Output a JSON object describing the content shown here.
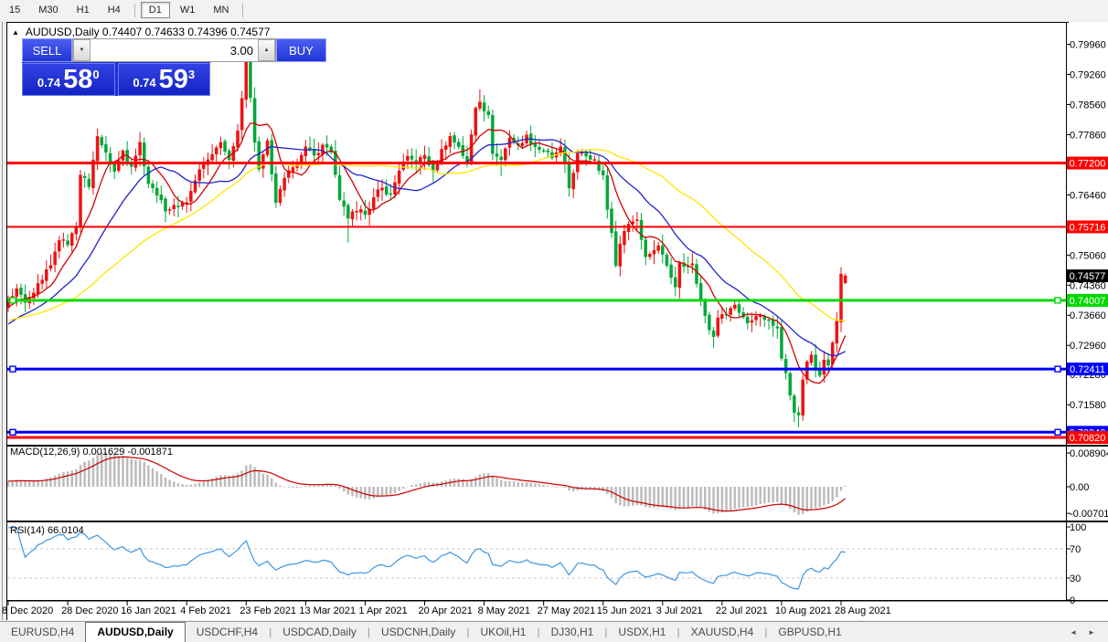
{
  "toolbar": {
    "items": [
      "15",
      "M30",
      "H1",
      "H4",
      "|",
      "D1",
      "W1",
      "MN",
      "|"
    ],
    "active": "D1"
  },
  "chart": {
    "marker": "▲",
    "title": "AUDUSD,Daily  0.74407 0.74633 0.74396 0.74577"
  },
  "trade_panel": {
    "sell_label": "SELL",
    "buy_label": "BUY",
    "volume": "3.00",
    "down_glyph": "▼",
    "up_glyph": "▲",
    "sell_small": "0.74",
    "sell_big": "58",
    "sell_sup": "0",
    "buy_small": "0.74",
    "buy_big": "59",
    "buy_sup": "3"
  },
  "macd": {
    "label": "MACD(12,26,9) 0.001629 -0.001871"
  },
  "rsi": {
    "label": "RSI(14) 66.0104"
  },
  "tabs": {
    "items": [
      {
        "label": "EURUSD,H4",
        "active": false
      },
      {
        "label": "AUDUSD,Daily",
        "active": true
      },
      {
        "label": "USDCHF,H4",
        "active": false
      },
      {
        "label": "USDCAD,Daily",
        "active": false
      },
      {
        "label": "USDCNH,Daily",
        "active": false
      },
      {
        "label": "UKOil,H1",
        "active": false
      },
      {
        "label": "DJ30,H1",
        "active": false
      },
      {
        "label": "USDX,H1",
        "active": false
      },
      {
        "label": "XAUUSD,H4",
        "active": false
      },
      {
        "label": "GBPUSD,H1",
        "active": false
      }
    ],
    "scroll_left": "◄",
    "scroll_right": "►"
  },
  "chart_data": {
    "type": "candlestick",
    "symbol": "AUDUSD",
    "timeframe": "Daily",
    "ohlc_current": {
      "open": 0.74407,
      "high": 0.74633,
      "low": 0.74396,
      "close": 0.74577
    },
    "bars": 198,
    "up_color": "#ee1111",
    "down_color": "#00a838",
    "price_axis_ticks": [
      0.7996,
      0.7926,
      0.7856,
      0.7786,
      0.7646,
      0.7506,
      0.7436,
      0.7366,
      0.7296,
      0.7228,
      0.7158
    ],
    "price_range": {
      "top": 0.8046,
      "bottom": 0.7065
    },
    "current_price": {
      "value": 0.74577,
      "label": "0.74577",
      "bg": "#000000",
      "fg": "#ffffff"
    },
    "hlines": [
      {
        "value": 0.772,
        "label": "0.77200",
        "color": "#ff0000",
        "width": 3,
        "anchors": false,
        "text": "#ffffff"
      },
      {
        "value": 0.75716,
        "label": "0.75716",
        "color": "#ff0000",
        "width": 2,
        "anchors": false,
        "text": "#ffffff"
      },
      {
        "value": 0.74007,
        "label": "0.74007",
        "color": "#00d900",
        "width": 3,
        "anchors": true,
        "text": "#ffffff"
      },
      {
        "value": 0.72411,
        "label": "0.72411",
        "color": "#0000ff",
        "width": 3,
        "anchors": true,
        "text": "#ffffff"
      },
      {
        "value": 0.7094,
        "label": "0.70940",
        "color": "#0000ff",
        "width": 3,
        "anchors": true,
        "text": "#ffffff"
      },
      {
        "value": 0.7082,
        "label": "0.70820",
        "color": "#ff0000",
        "width": 3,
        "anchors": false,
        "text": "#ffffff"
      }
    ],
    "moving_averages": [
      {
        "name": "ma-fast",
        "period": 8,
        "color": "#d40000",
        "seed": 0.736
      },
      {
        "name": "ma-medium",
        "period": 20,
        "color": "#2222cc",
        "seed": 0.728
      },
      {
        "name": "ma-slow",
        "period": 45,
        "color": "#ffe400",
        "seed": 0.73
      }
    ],
    "close_anchors": [
      [
        0,
        0.7405
      ],
      [
        2,
        0.7428
      ],
      [
        4,
        0.7396
      ],
      [
        6,
        0.7418
      ],
      [
        8,
        0.7448
      ],
      [
        10,
        0.7482
      ],
      [
        12,
        0.754
      ],
      [
        14,
        0.753
      ],
      [
        16,
        0.7572
      ],
      [
        17,
        0.7692
      ],
      [
        19,
        0.7665
      ],
      [
        21,
        0.7782
      ],
      [
        23,
        0.7745
      ],
      [
        25,
        0.77
      ],
      [
        27,
        0.7748
      ],
      [
        29,
        0.7712
      ],
      [
        31,
        0.7768
      ],
      [
        33,
        0.7672
      ],
      [
        35,
        0.7645
      ],
      [
        37,
        0.7608
      ],
      [
        39,
        0.7622
      ],
      [
        42,
        0.7628
      ],
      [
        45,
        0.7705
      ],
      [
        48,
        0.774
      ],
      [
        50,
        0.7768
      ],
      [
        52,
        0.7728
      ],
      [
        54,
        0.7795
      ],
      [
        55,
        0.787
      ],
      [
        56,
        0.796
      ],
      [
        57,
        0.7872
      ],
      [
        58,
        0.7768
      ],
      [
        59,
        0.7706
      ],
      [
        61,
        0.7772
      ],
      [
        63,
        0.7628
      ],
      [
        65,
        0.7685
      ],
      [
        68,
        0.7718
      ],
      [
        70,
        0.7758
      ],
      [
        72,
        0.7738
      ],
      [
        74,
        0.7762
      ],
      [
        76,
        0.7745
      ],
      [
        78,
        0.7635
      ],
      [
        80,
        0.7592
      ],
      [
        82,
        0.7608
      ],
      [
        84,
        0.76
      ],
      [
        86,
        0.764
      ],
      [
        88,
        0.7662
      ],
      [
        90,
        0.7648
      ],
      [
        92,
        0.7702
      ],
      [
        94,
        0.7736
      ],
      [
        96,
        0.7718
      ],
      [
        98,
        0.7738
      ],
      [
        100,
        0.7702
      ],
      [
        102,
        0.7752
      ],
      [
        104,
        0.7782
      ],
      [
        106,
        0.7758
      ],
      [
        108,
        0.7722
      ],
      [
        110,
        0.7848
      ],
      [
        111,
        0.7862
      ],
      [
        113,
        0.7832
      ],
      [
        114,
        0.7742
      ],
      [
        116,
        0.7728
      ],
      [
        118,
        0.7778
      ],
      [
        120,
        0.7762
      ],
      [
        122,
        0.7785
      ],
      [
        124,
        0.7758
      ],
      [
        126,
        0.7748
      ],
      [
        128,
        0.7732
      ],
      [
        130,
        0.7758
      ],
      [
        132,
        0.7662
      ],
      [
        134,
        0.7742
      ],
      [
        136,
        0.7736
      ],
      [
        138,
        0.7728
      ],
      [
        140,
        0.7692
      ],
      [
        141,
        0.7612
      ],
      [
        142,
        0.7558
      ],
      [
        143,
        0.7482
      ],
      [
        144,
        0.7532
      ],
      [
        146,
        0.7578
      ],
      [
        148,
        0.7588
      ],
      [
        150,
        0.7502
      ],
      [
        153,
        0.7528
      ],
      [
        155,
        0.7482
      ],
      [
        157,
        0.7432
      ],
      [
        158,
        0.7488
      ],
      [
        161,
        0.7486
      ],
      [
        163,
        0.7402
      ],
      [
        165,
        0.7332
      ],
      [
        166,
        0.7316
      ],
      [
        167,
        0.736
      ],
      [
        169,
        0.7368
      ],
      [
        171,
        0.739
      ],
      [
        174,
        0.7348
      ],
      [
        176,
        0.7364
      ],
      [
        178,
        0.7356
      ],
      [
        180,
        0.7342
      ],
      [
        181,
        0.7336
      ],
      [
        182,
        0.7266
      ],
      [
        183,
        0.7232
      ],
      [
        184,
        0.718
      ],
      [
        185,
        0.714
      ],
      [
        186,
        0.7134
      ],
      [
        187,
        0.7216
      ],
      [
        188,
        0.7258
      ],
      [
        189,
        0.7274
      ],
      [
        190,
        0.7238
      ],
      [
        191,
        0.7226
      ],
      [
        192,
        0.7262
      ],
      [
        193,
        0.725
      ],
      [
        194,
        0.7302
      ],
      [
        195,
        0.7352
      ],
      [
        196,
        0.7462
      ],
      [
        197,
        0.74577
      ]
    ],
    "overrides": {
      "21": {
        "high": 0.78
      },
      "56": {
        "high": 0.8005
      },
      "57": {
        "high": 0.799
      },
      "80": {
        "low": 0.7535
      },
      "111": {
        "high": 0.7891
      },
      "116": {
        "low": 0.7689
      },
      "143": {
        "low": 0.7477
      },
      "157": {
        "low": 0.741
      },
      "166": {
        "low": 0.729
      },
      "185": {
        "low": 0.7118
      },
      "186": {
        "low": 0.7106
      },
      "196": {
        "high": 0.7478
      },
      "197": {
        "open": 0.74407,
        "high": 0.74633,
        "low": 0.74396,
        "close": 0.74577
      }
    },
    "x_tick_bars": [
      0,
      14,
      28,
      42,
      56,
      70,
      84,
      98,
      112,
      126,
      140,
      154,
      168,
      182,
      196
    ],
    "x_tick_labels": [
      "8 Dec 2020",
      "28 Dec 2020",
      "16 Jan 2021",
      "4 Feb 2021",
      "23 Feb 2021",
      "13 Mar 2021",
      "1 Apr 2021",
      "20 Apr 2021",
      "8 May 2021",
      "27 May 2021",
      "15 Jun 2021",
      "3 Jul 2021",
      "22 Jul 2021",
      "10 Aug 2021",
      "28 Aug 2021"
    ],
    "macd": {
      "params": "12,26,9",
      "value": 0.001629,
      "signal": -0.001871,
      "axis_ticks": [
        [
          "0.008904",
          0.008904
        ],
        [
          "0.00",
          0.0
        ],
        [
          "-0.007013",
          -0.007013
        ]
      ],
      "bar_color": "#bcbcbc",
      "line_color": "#cc0000"
    },
    "rsi": {
      "period": 14,
      "value": 66.0104,
      "levels": [
        70,
        30
      ],
      "axis_ticks": [
        [
          "100",
          100
        ],
        [
          "70",
          70
        ],
        [
          "30",
          30
        ],
        [
          "0",
          0
        ]
      ],
      "color": "#3b96e6",
      "level_color": "#c9c9c9"
    }
  }
}
